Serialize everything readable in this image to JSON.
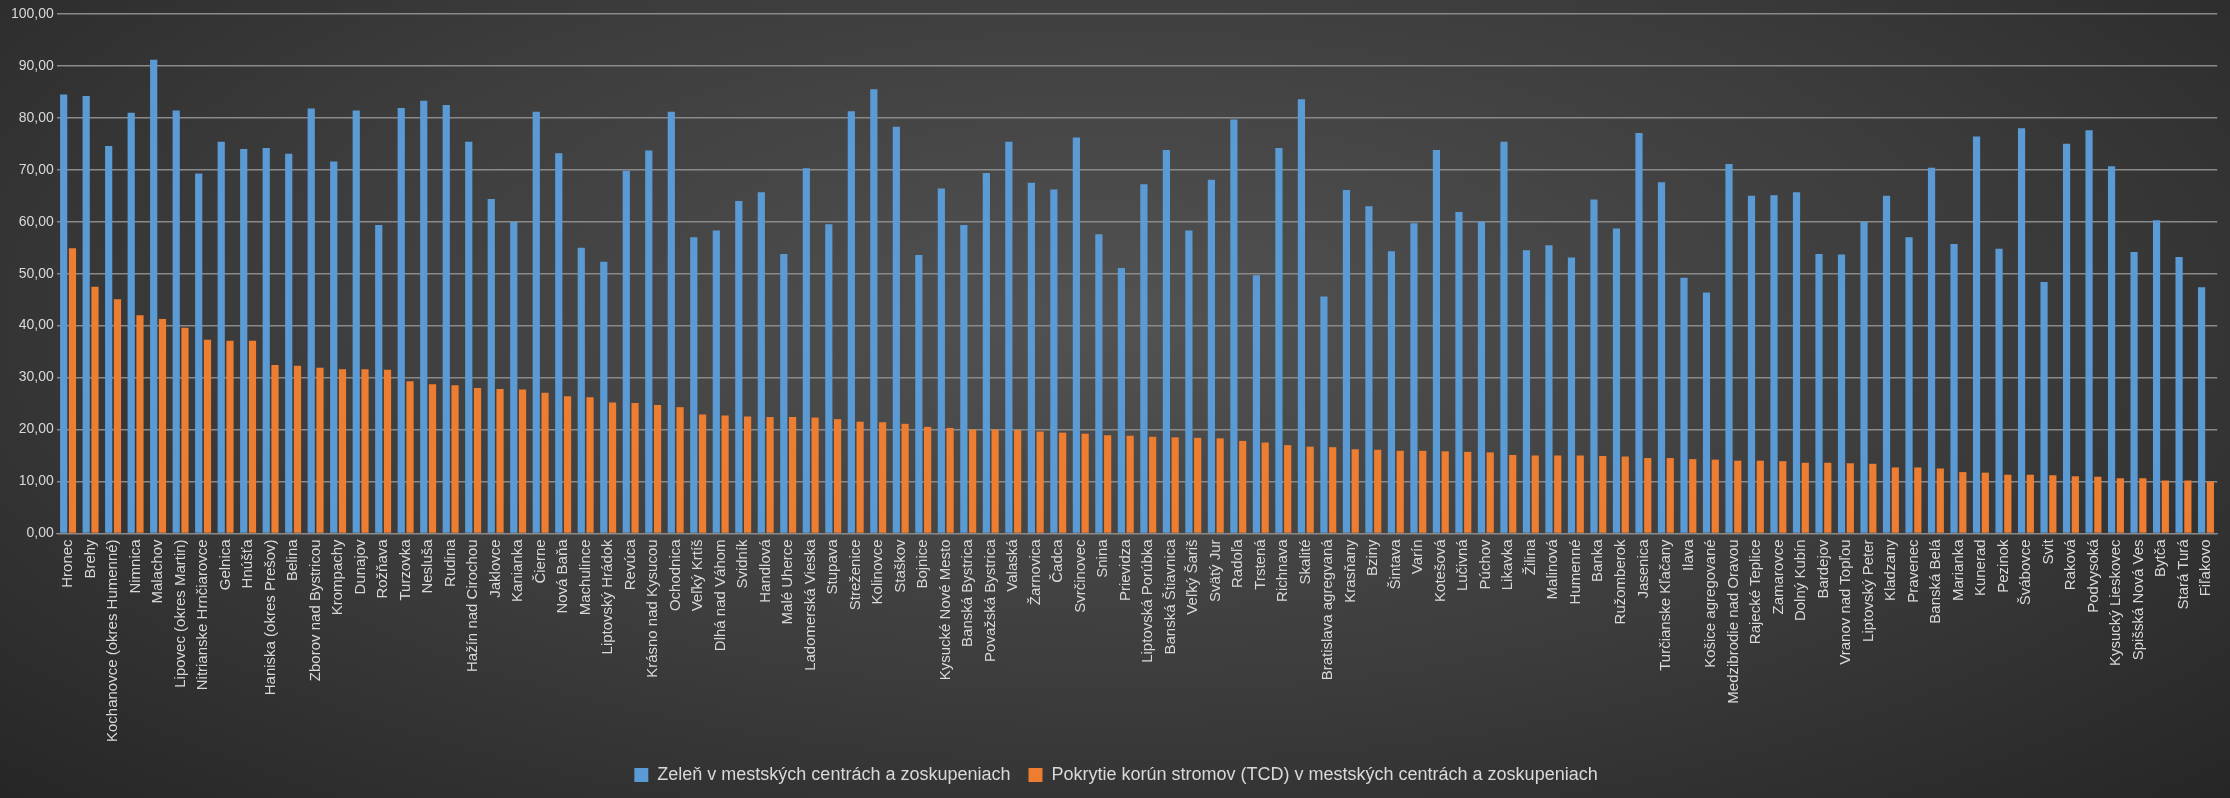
{
  "chart_data": {
    "type": "bar",
    "categories": [
      "Hronec",
      "Brehy",
      "Kochanovce (okres Humenné)",
      "Nimnica",
      "Malachov",
      "Lipovec (okres Martin)",
      "Nitrianske Hrnčiarovce",
      "Gelnica",
      "Hnúšťa",
      "Haniska (okres Prešov)",
      "Belina",
      "Zborov nad Bystricou",
      "Krompachy",
      "Dunajov",
      "Rožňava",
      "Turzovka",
      "Nesluša",
      "Rudina",
      "Hažín nad Cirochou",
      "Jaklovce",
      "Kanianka",
      "Čierne",
      "Nová Baňa",
      "Machulince",
      "Liptovský Hrádok",
      "Revúca",
      "Krásno nad Kysucou",
      "Ochodnica",
      "Veľký Krtíš",
      "Dlhá nad Váhom",
      "Svidník",
      "Handlová",
      "Malé Uherce",
      "Ladomerská Vieska",
      "Stupava",
      "Streženice",
      "Kolinovce",
      "Staškov",
      "Bojnice",
      "Kysucké Nové Mesto",
      "Banská Bystrica",
      "Považská Bystrica",
      "Valaská",
      "Žarnovica",
      "Čadca",
      "Svrčinovec",
      "Snina",
      "Prievidza",
      "Liptovská Porúbka",
      "Banská Štiavnica",
      "Veľký Šariš",
      "Svätý Jur",
      "Radoľa",
      "Trstená",
      "Richnava",
      "Skalité",
      "Bratislava agregvaná",
      "Krasňany",
      "Bziny",
      "Šintava",
      "Varín",
      "Kotešová",
      "Lučivná",
      "Púchov",
      "Likavka",
      "Žilina",
      "Malinová",
      "Humenné",
      "Banka",
      "Ružomberok",
      "Jasenica",
      "Turčianske Kľačany",
      "Ilava",
      "Košice agregované",
      "Medzibrodie nad Oravou",
      "Rajecké Teplice",
      "Zamarovce",
      "Dolný Kubín",
      "Bardejov",
      "Vranov nad Topľou",
      "Liptovský Peter",
      "Kladzany",
      "Pravenec",
      "Banská Belá",
      "Marianka",
      "Kunerad",
      "Pezinok",
      "Švábovce",
      "Svit",
      "Raková",
      "Podvysoká",
      "Kysucký Lieskovec",
      "Spišská Nová Ves",
      "Bytča",
      "Stará Turá",
      "Fiľakovo"
    ],
    "series": [
      {
        "name": "Zeleň v mestských centrách a zoskupeniach",
        "color": "#5b9bd5",
        "values": [
          84.5,
          84.2,
          74.6,
          81,
          91.2,
          81.4,
          69.3,
          75.4,
          74,
          74.2,
          73.1,
          81.8,
          71.6,
          81.4,
          59.4,
          81.9,
          83.3,
          82.5,
          75.4,
          64.4,
          60,
          81.2,
          73.2,
          55,
          52.3,
          69.8,
          73.7,
          81.2,
          57,
          58.3,
          64,
          65.7,
          53.8,
          70.3,
          59.5,
          81.3,
          85.5,
          78.3,
          53.6,
          66.4,
          59.4,
          69.4,
          75.4,
          67.5,
          66.2,
          76.2,
          57.6,
          51.1,
          67.2,
          73.8,
          58.3,
          68.1,
          79.7,
          49.7,
          74.2,
          83.6,
          45.6,
          66.1,
          63,
          54.3,
          59.7,
          73.8,
          61.9,
          60,
          75.4,
          54.5,
          55.5,
          53.1,
          64.3,
          58.7,
          77.1,
          67.6,
          49.2,
          46.4,
          71.1,
          65,
          65.1,
          65.7,
          53.8,
          53.7,
          60,
          65,
          57,
          70.4,
          55.7,
          76.4,
          54.8,
          78,
          48.4,
          75,
          77.6,
          70.7,
          54.2,
          60.3,
          53.2,
          47.4
        ]
      },
      {
        "name": "Pokrytie korún stromov (TCD) v mestských centrách a zoskupeniach",
        "color": "#ed7d31",
        "values": [
          54.9,
          47.5,
          45.1,
          42,
          41.3,
          39.6,
          37.3,
          37.1,
          37.1,
          32.4,
          32.3,
          31.9,
          31.6,
          31.6,
          31.5,
          29.3,
          28.7,
          28.5,
          28,
          27.8,
          27.7,
          27.1,
          26.4,
          26.2,
          25.2,
          25.1,
          24.7,
          24.3,
          22.9,
          22.7,
          22.5,
          22.4,
          22.4,
          22.3,
          22,
          21.5,
          21.4,
          21.1,
          20.5,
          20.3,
          20,
          20,
          19.9,
          19.6,
          19.4,
          19.2,
          18.9,
          18.8,
          18.6,
          18.5,
          18.4,
          18.3,
          17.8,
          17.5,
          17,
          16.7,
          16.6,
          16.2,
          16.1,
          15.9,
          15.9,
          15.8,
          15.7,
          15.6,
          15.1,
          15,
          15,
          15,
          14.9,
          14.8,
          14.5,
          14.5,
          14.3,
          14.2,
          14,
          14,
          13.9,
          13.6,
          13.6,
          13.5,
          13.4,
          12.7,
          12.7,
          12.5,
          11.8,
          11.7,
          11.3,
          11.3,
          11.2,
          11,
          10.9,
          10.6,
          10.6,
          10.2,
          10.2,
          10
        ]
      }
    ],
    "ylim": [
      0,
      100
    ],
    "yticks": [
      {
        "value": 0,
        "label": "0,00"
      },
      {
        "value": 10,
        "label": "10,00"
      },
      {
        "value": 20,
        "label": "20,00"
      },
      {
        "value": 30,
        "label": "30,00"
      },
      {
        "value": 40,
        "label": "40,00"
      },
      {
        "value": 50,
        "label": "50,00"
      },
      {
        "value": 60,
        "label": "60,00"
      },
      {
        "value": 70,
        "label": "70,00"
      },
      {
        "value": 80,
        "label": "80,00"
      },
      {
        "value": 90,
        "label": "90,00"
      },
      {
        "value": 100,
        "label": "100,00"
      }
    ],
    "grid": "y",
    "legend": "bottom"
  }
}
